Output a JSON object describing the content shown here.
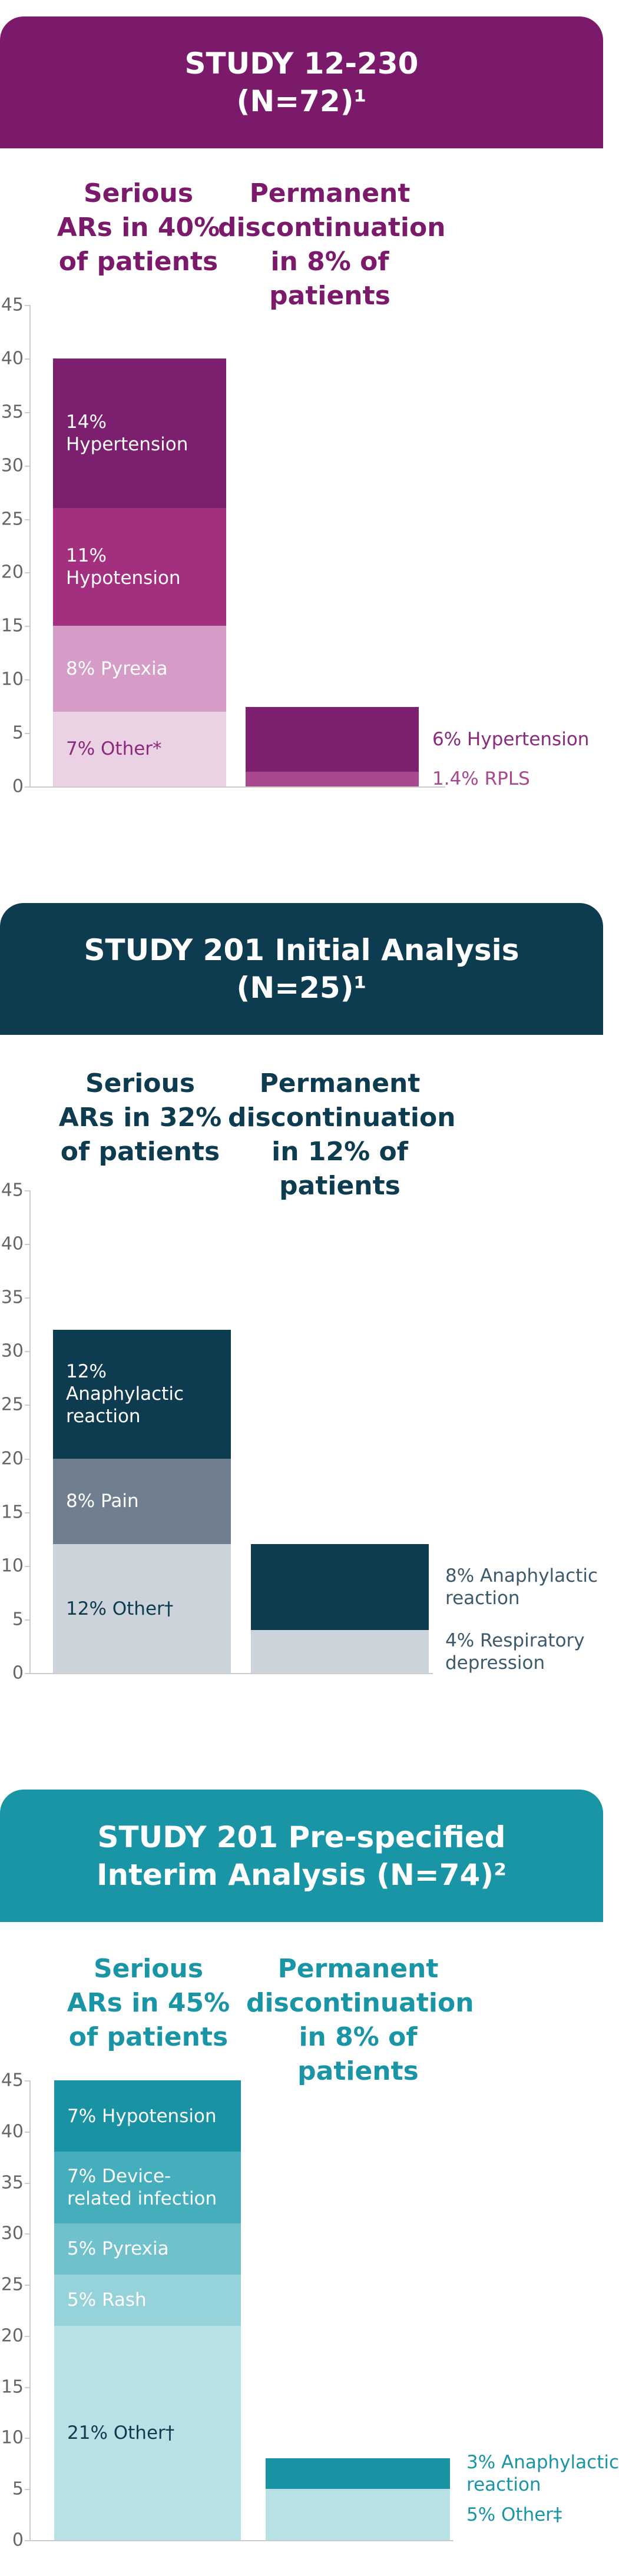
{
  "chart_data": [
    {
      "type": "bar",
      "stacked": true,
      "title": "STUDY 12-230\n(N=72)¹",
      "color": "#7b1a6b",
      "ylim": [
        0,
        45
      ],
      "yticks": [
        0,
        5,
        10,
        15,
        20,
        25,
        30,
        35,
        40,
        45
      ],
      "bars": [
        {
          "header": "Serious\nARs in 40%\nof patients",
          "segments": [
            {
              "label": "7% Other*",
              "value": 7,
              "color": "#ebd1e4",
              "text_color": "#8a2a7b"
            },
            {
              "label": "8% Pyrexia",
              "value": 8,
              "color": "#d49cc7",
              "text_color": "#ffffff"
            },
            {
              "label": "11%\nHypotension",
              "value": 11,
              "color": "#a3307f",
              "text_color": "#ffffff"
            },
            {
              "label": "14%\nHypertension",
              "value": 14,
              "color": "#7b1f6e",
              "text_color": "#ffffff"
            }
          ]
        },
        {
          "header": "Permanent\ndiscontinuation\nin 8% of\npatients",
          "segments": [
            {
              "label": "1.4% RPLS",
              "value": 1.4,
              "color": "#a8488f",
              "text_color": "#a8488f"
            },
            {
              "label": "6% Hypertension",
              "value": 6,
              "color": "#7b1f6e",
              "text_color": "#8a2a7b"
            }
          ]
        }
      ]
    },
    {
      "type": "bar",
      "stacked": true,
      "title": "STUDY 201 Initial Analysis\n(N=25)¹",
      "color": "#0d3b4f",
      "ylim": [
        0,
        45
      ],
      "yticks": [
        0,
        5,
        10,
        15,
        20,
        25,
        30,
        35,
        40,
        45
      ],
      "bars": [
        {
          "header": "Serious\nARs in 32%\nof patients",
          "segments": [
            {
              "label": "12% Other†",
              "value": 12,
              "color": "#cdd3db",
              "text_color": "#0d3b4f"
            },
            {
              "label": "8% Pain",
              "value": 8,
              "color": "#6f7f8f",
              "text_color": "#ffffff"
            },
            {
              "label": "12%\nAnaphylactic\nreaction",
              "value": 12,
              "color": "#0d3b4f",
              "text_color": "#ffffff"
            }
          ]
        },
        {
          "header": "Permanent\ndiscontinuation\nin 12% of\npatients",
          "segments": [
            {
              "label": "4% Respiratory\ndepression",
              "value": 4,
              "color": "#cdd3db",
              "text_color": "#3d5a6c"
            },
            {
              "label": "8% Anaphylactic\nreaction",
              "value": 8,
              "color": "#0d3b4f",
              "text_color": "#3d5a6c"
            }
          ]
        }
      ]
    },
    {
      "type": "bar",
      "stacked": true,
      "title": "STUDY 201 Pre-specified\nInterim Analysis (N=74)²",
      "color": "#1a95a5",
      "ylim": [
        0,
        45
      ],
      "yticks": [
        0,
        5,
        10,
        15,
        20,
        25,
        30,
        35,
        40,
        45
      ],
      "bars": [
        {
          "header": "Serious\nARs in 45%\nof patients",
          "segments": [
            {
              "label": "21% Other†",
              "value": 21,
              "color": "#b8e1e6",
              "text_color": "#0d3b4f"
            },
            {
              "label": "5% Rash",
              "value": 5,
              "color": "#95d2da",
              "text_color": "#ffffff"
            },
            {
              "label": "5% Pyrexia",
              "value": 5,
              "color": "#6fc1cc",
              "text_color": "#ffffff"
            },
            {
              "label": "7% Device-\nrelated infection",
              "value": 7,
              "color": "#45aebd",
              "text_color": "#ffffff"
            },
            {
              "label": "7% Hypotension",
              "value": 7,
              "color": "#1993a3",
              "text_color": "#ffffff"
            }
          ]
        },
        {
          "header": "Permanent\ndiscontinuation\nin 8% of\npatients",
          "segments": [
            {
              "label": "5% Other‡",
              "value": 5,
              "color": "#b8e1e6",
              "text_color": "#1a95a5"
            },
            {
              "label": "3% Anaphylactic\nreaction",
              "value": 3,
              "color": "#1993a3",
              "text_color": "#1a95a5"
            }
          ]
        }
      ]
    }
  ]
}
